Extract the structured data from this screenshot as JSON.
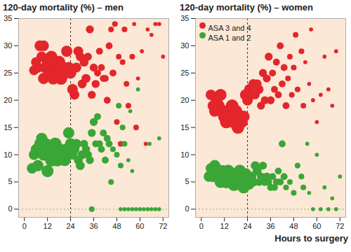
{
  "chart_data": [
    {
      "type": "scatter",
      "title": "120-day mortality (%) – men",
      "xlim": [
        -3,
        75
      ],
      "xticks": [
        0,
        12,
        24,
        36,
        48,
        60,
        72
      ],
      "ylim": [
        -1.5,
        35
      ],
      "yticks": [
        0,
        5,
        10,
        15,
        20,
        25,
        30,
        35
      ],
      "vlines": [
        24
      ],
      "hlines": [
        0
      ],
      "series": [
        {
          "name": "ASA 3 and 4",
          "color": "#e3262b",
          "x": [
            5,
            6,
            7,
            8,
            9,
            10,
            10,
            11,
            12,
            13,
            14,
            15,
            16,
            17,
            18,
            19,
            20,
            21,
            22,
            23,
            24,
            25,
            26,
            27,
            28,
            29,
            30,
            31,
            32,
            33,
            34,
            35,
            36,
            37,
            38,
            39,
            40,
            41,
            42,
            43,
            44,
            45,
            46,
            47,
            48,
            49,
            50,
            51,
            52,
            53,
            54,
            56,
            57,
            58,
            59,
            61,
            63,
            64,
            66,
            68,
            70,
            72
          ],
          "values": [
            25.5,
            27,
            26,
            30,
            28,
            30,
            24,
            26,
            27,
            25,
            28,
            24,
            26,
            25,
            27,
            24,
            26,
            25,
            29,
            26,
            25,
            22,
            21,
            26,
            29,
            28,
            23,
            27,
            24,
            28,
            33,
            21,
            26,
            23,
            25,
            29,
            26,
            24,
            24,
            20,
            30,
            33,
            25,
            34,
            16,
            28,
            12,
            27,
            33,
            23,
            19,
            28,
            34,
            15,
            24,
            29,
            12,
            33,
            32,
            34,
            34,
            28
          ],
          "sizes": [
            6,
            6,
            7,
            7,
            7,
            7,
            8,
            8,
            8,
            9,
            9,
            9,
            10,
            10,
            10,
            10,
            9,
            9,
            8,
            8,
            8,
            7,
            6,
            6,
            6,
            5,
            5,
            5,
            5,
            4,
            4,
            4,
            4,
            4,
            3,
            3,
            3,
            3,
            3,
            3,
            3,
            2,
            3,
            2,
            2,
            2,
            2,
            2,
            2,
            2,
            2,
            2,
            1,
            2,
            1,
            1,
            1,
            1,
            1,
            1,
            1,
            1
          ]
        },
        {
          "name": "ASA 1 and 2",
          "color": "#3aa637",
          "x": [
            4,
            5,
            6,
            7,
            8,
            9,
            10,
            11,
            12,
            13,
            14,
            15,
            16,
            17,
            18,
            19,
            20,
            21,
            22,
            23,
            24,
            25,
            26,
            27,
            28,
            29,
            30,
            31,
            32,
            33,
            34,
            35,
            36,
            37,
            38,
            39,
            40,
            41,
            42,
            43,
            44,
            45,
            46,
            48,
            49,
            50,
            51,
            52,
            54,
            55,
            56,
            59,
            65,
            70,
            35,
            50,
            52,
            54,
            56,
            58,
            60,
            62,
            64,
            66,
            68,
            70
          ],
          "values": [
            7.5,
            10,
            11,
            8,
            12,
            13,
            10,
            12,
            7,
            11,
            9,
            10,
            12,
            9,
            11,
            10,
            10,
            9,
            11,
            14,
            12,
            10,
            11,
            12,
            9,
            8,
            10,
            12,
            11,
            10,
            9,
            14,
            16,
            12,
            17,
            12,
            11,
            14,
            9,
            13,
            12,
            5,
            11,
            10,
            19,
            8,
            15,
            12,
            9,
            18,
            7,
            22,
            12,
            13,
            0,
            0,
            0,
            0,
            0,
            0,
            0,
            0,
            0,
            0,
            0,
            0
          ],
          "sizes": [
            7,
            7,
            7,
            8,
            8,
            8,
            9,
            9,
            9,
            9,
            10,
            10,
            10,
            10,
            10,
            10,
            10,
            9,
            9,
            8,
            8,
            6,
            6,
            6,
            5,
            5,
            5,
            4,
            4,
            4,
            4,
            4,
            4,
            3,
            3,
            3,
            3,
            3,
            3,
            3,
            3,
            2,
            2,
            2,
            2,
            2,
            2,
            2,
            1,
            1,
            1,
            1,
            1,
            1,
            2,
            1,
            1,
            1,
            1,
            1,
            1,
            1,
            1,
            1,
            1,
            1
          ]
        }
      ]
    },
    {
      "type": "scatter",
      "title": "120-day mortality (%) – women",
      "xlabel": "Hours to surgery",
      "legend": "top-left",
      "xlim": [
        -3,
        75
      ],
      "xticks": [
        0,
        12,
        24,
        36,
        48,
        60,
        72
      ],
      "ylim": [
        -1.5,
        35
      ],
      "yticks": [
        0,
        5,
        10,
        15,
        20,
        25,
        30,
        35
      ],
      "vlines": [
        24
      ],
      "hlines": [
        0
      ],
      "series": [
        {
          "name": "ASA 3 and 4",
          "color": "#e3262b",
          "x": [
            5,
            6,
            7,
            8,
            9,
            10,
            11,
            12,
            13,
            14,
            15,
            16,
            17,
            18,
            19,
            20,
            21,
            22,
            23,
            24,
            25,
            26,
            27,
            28,
            29,
            30,
            31,
            32,
            33,
            34,
            35,
            36,
            37,
            38,
            39,
            40,
            41,
            42,
            43,
            44,
            45,
            46,
            47,
            48,
            49,
            50,
            52,
            53,
            54,
            56,
            57,
            58,
            60,
            62,
            64,
            66,
            68,
            70
          ],
          "values": [
            21,
            19,
            18,
            20,
            19,
            21,
            18,
            17,
            16,
            18,
            17,
            19,
            16,
            18,
            15,
            17,
            16,
            17,
            21,
            20,
            22,
            21,
            23,
            21,
            23,
            22,
            19,
            25,
            20,
            24,
            28,
            20,
            25,
            22,
            27,
            21,
            30,
            23,
            26,
            19,
            24,
            28,
            21,
            26,
            32,
            22,
            29,
            19,
            27,
            23,
            33,
            20,
            16,
            21,
            28,
            22,
            19,
            29
          ],
          "sizes": [
            7,
            7,
            8,
            8,
            9,
            9,
            10,
            10,
            10,
            10,
            10,
            10,
            10,
            10,
            10,
            10,
            9,
            9,
            8,
            7,
            7,
            6,
            6,
            5,
            5,
            5,
            4,
            4,
            4,
            4,
            4,
            4,
            3,
            3,
            3,
            3,
            3,
            3,
            3,
            3,
            2,
            2,
            2,
            2,
            2,
            2,
            2,
            2,
            1,
            1,
            1,
            1,
            1,
            1,
            1,
            1,
            1,
            1
          ]
        },
        {
          "name": "ASA 1 and 2",
          "color": "#3aa637",
          "x": [
            4,
            5,
            6,
            7,
            8,
            9,
            10,
            11,
            12,
            13,
            14,
            15,
            16,
            17,
            18,
            19,
            20,
            21,
            22,
            23,
            24,
            25,
            26,
            27,
            28,
            29,
            30,
            31,
            32,
            33,
            34,
            35,
            36,
            37,
            38,
            39,
            40,
            41,
            42,
            43,
            44,
            46,
            48,
            50,
            52,
            53,
            55,
            56,
            58,
            60,
            62,
            64,
            66,
            68,
            70,
            72
          ],
          "values": [
            6,
            7.5,
            6,
            8,
            6.5,
            7,
            5,
            7,
            6,
            5,
            7,
            5.5,
            6,
            4.5,
            6,
            5,
            7,
            5,
            4,
            6.5,
            5,
            4.5,
            6,
            5,
            8,
            7,
            5,
            6,
            8,
            5,
            6,
            5,
            4,
            6,
            4,
            5,
            7,
            5,
            12,
            6,
            4,
            5,
            3,
            8,
            6,
            4,
            12,
            3,
            0,
            10,
            0,
            4,
            0,
            2,
            0,
            6
          ],
          "sizes": [
            7,
            7,
            8,
            8,
            8,
            9,
            9,
            9,
            10,
            10,
            10,
            10,
            10,
            10,
            10,
            10,
            10,
            9,
            9,
            8,
            7,
            6,
            6,
            5,
            5,
            5,
            4,
            4,
            4,
            4,
            4,
            3,
            3,
            3,
            3,
            3,
            3,
            3,
            3,
            3,
            2,
            2,
            2,
            2,
            2,
            2,
            1,
            1,
            1,
            1,
            1,
            1,
            1,
            1,
            1,
            1
          ]
        }
      ]
    }
  ]
}
